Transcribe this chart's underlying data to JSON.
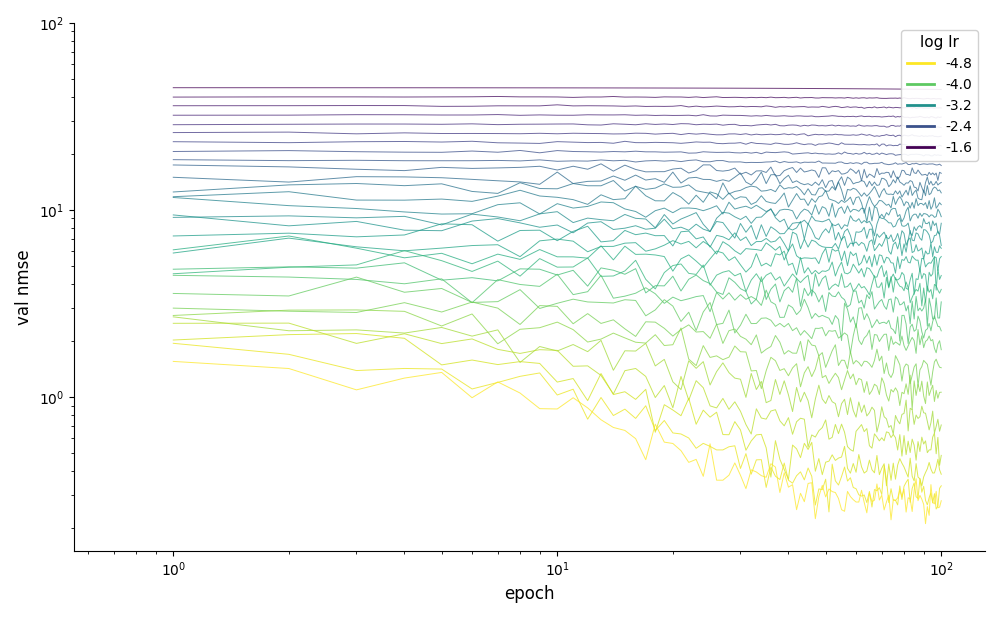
{
  "title": "",
  "xlabel": "epoch",
  "ylabel": "val nmse",
  "legend_title": "log lr",
  "legend_labels": [
    "-4.8",
    "-4.0",
    "-3.2",
    "-2.4",
    "-1.6"
  ],
  "legend_colors": [
    "#fde725",
    "#5ec962",
    "#21918c",
    "#3b528b",
    "#440154"
  ],
  "n_epochs": 100,
  "n_curves": 30,
  "log_lr_min": -4.8,
  "log_lr_max": -1.6,
  "background_color": "#ffffff",
  "figsize": [
    10.0,
    6.18
  ],
  "dpi": 100
}
